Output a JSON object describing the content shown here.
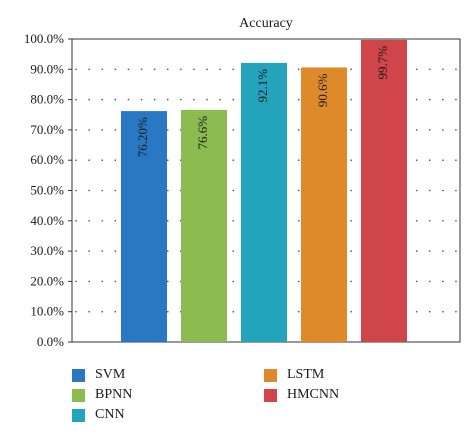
{
  "chart_data": {
    "type": "bar",
    "title": "Accuracy",
    "xlabel": "",
    "ylabel": "",
    "ylim": [
      0,
      100
    ],
    "y_ticks": [
      "0.0%",
      "10.0%",
      "20.0%",
      "30.0%",
      "40.0%",
      "50.0%",
      "60.0%",
      "70.0%",
      "80.0%",
      "90.0%",
      "100.0%"
    ],
    "grid": "dotted horizontal",
    "legend_position": "bottom",
    "categories": [
      "SVM",
      "BPNN",
      "CNN",
      "LSTM",
      "HMCNN"
    ],
    "values": [
      76.2,
      76.6,
      92.1,
      90.6,
      99.7
    ],
    "data_labels": [
      "76.20%",
      "76.6%",
      "92.1%",
      "90.6%",
      "99.7%"
    ],
    "colors": [
      "#2878c4",
      "#8cbb4f",
      "#24a3bd",
      "#de8a2b",
      "#d0454a"
    ],
    "legend": [
      "SVM",
      "BPNN",
      "CNN",
      "LSTM",
      "HMCNN"
    ]
  }
}
